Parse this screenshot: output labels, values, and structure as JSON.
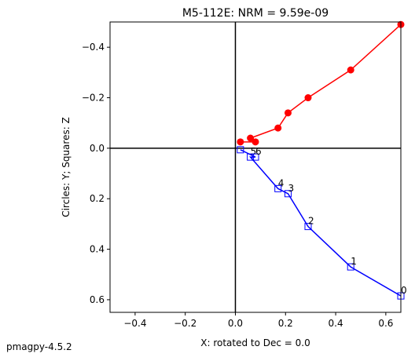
{
  "chart_data": {
    "type": "line",
    "title": "M5-112E: NRM =  9.59e-09",
    "xlabel": "X: rotated to Dec =     0.0",
    "ylabel": "Circles: Y; Squares: Z",
    "footer": "pmagpy-4.5.2",
    "x": [
      0.66,
      0.46,
      0.29,
      0.21,
      0.17,
      0.06,
      0.08,
      0.02
    ],
    "series": [
      {
        "marker": "circle",
        "color": "#ff0000",
        "values": [
          -0.49,
          -0.31,
          -0.2,
          -0.14,
          -0.08,
          -0.04,
          -0.025,
          -0.025
        ]
      },
      {
        "marker": "square",
        "color": "#0000ff",
        "values": [
          0.585,
          0.47,
          0.31,
          0.18,
          0.16,
          0.035,
          0.035,
          0.006
        ],
        "point_labels": [
          "0",
          "1",
          "2",
          "3",
          "4",
          "5",
          "6",
          null
        ]
      }
    ],
    "xlim": [
      -0.5,
      0.66
    ],
    "ylim": [
      -0.5,
      0.65
    ],
    "y_inverted": true,
    "xticks": [
      {
        "value": -0.4,
        "label": "−0.4"
      },
      {
        "value": -0.2,
        "label": "−0.2"
      },
      {
        "value": 0,
        "label": "0.0"
      },
      0.2,
      0.4,
      0.6
    ],
    "yticks": [
      {
        "value": -0.4,
        "label": "−0.4"
      },
      {
        "value": -0.2,
        "label": "−0.2"
      },
      {
        "value": 0,
        "label": "0.0"
      },
      0.2,
      0.4,
      0.6
    ]
  }
}
